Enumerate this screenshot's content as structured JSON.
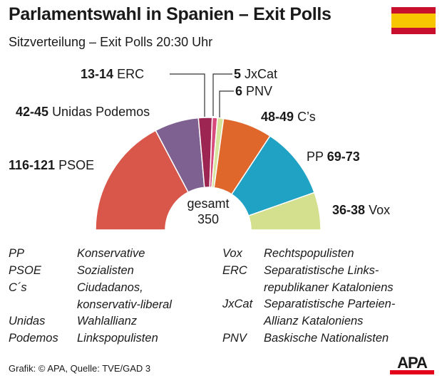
{
  "title": "Parlamentswahl in Spanien – Exit Polls",
  "subtitle": "Sitzverteilung  – Exit Polls 20:30 Uhr",
  "flag_colors": [
    "#c8102e",
    "#f7c600",
    "#c8102e"
  ],
  "chart_data": {
    "type": "pie",
    "variant": "parliament-semicircle",
    "center_label": "gesamt",
    "total": "350",
    "series": [
      {
        "name": "PSOE",
        "label": "116-121",
        "low": 116,
        "high": 121,
        "color": "#d9574a"
      },
      {
        "name": "Unidas Podemos",
        "label": "42-45",
        "low": 42,
        "high": 45,
        "color": "#7e6190"
      },
      {
        "name": "ERC",
        "label": "13-14",
        "low": 13,
        "high": 14,
        "color": "#9c2552"
      },
      {
        "name": "JxCat",
        "label": "5",
        "low": 5,
        "high": 5,
        "color": "#d94a7d"
      },
      {
        "name": "PNV",
        "label": "6",
        "low": 6,
        "high": 6,
        "color": "#d6e39c"
      },
      {
        "name": "C’s",
        "label": "48-49",
        "low": 48,
        "high": 49,
        "color": "#e0672c"
      },
      {
        "name": "PP",
        "label": "69-73",
        "low": 69,
        "high": 73,
        "color": "#1fa2c3"
      },
      {
        "name": "Vox",
        "label": "36-38",
        "low": 36,
        "high": 38,
        "color": "#d4e08e"
      }
    ]
  },
  "legend": {
    "left": [
      {
        "abbr": "PP",
        "desc": "Konservative"
      },
      {
        "abbr": "PSOE",
        "desc": "Sozialisten"
      },
      {
        "abbr": "C´s",
        "desc": "Ciudadanos,\nkonservativ-liberal"
      },
      {
        "abbr": "Unidas\nPodemos",
        "desc": "Wahlallianz\nLinkspopulisten"
      }
    ],
    "right": [
      {
        "abbr": "Vox",
        "desc": "Rechtspopulisten"
      },
      {
        "abbr": "ERC",
        "desc": "Separatistische Links-\nrepublikaner Kataloniens"
      },
      {
        "abbr": "JxCat",
        "desc": "Separatistische Parteien-\nAllianz Kataloniens"
      },
      {
        "abbr": "PNV",
        "desc": "Baskische Nationalisten"
      }
    ]
  },
  "source": "Grafik: © APA, Quelle: TVE/GAD 3",
  "logo": "APA"
}
